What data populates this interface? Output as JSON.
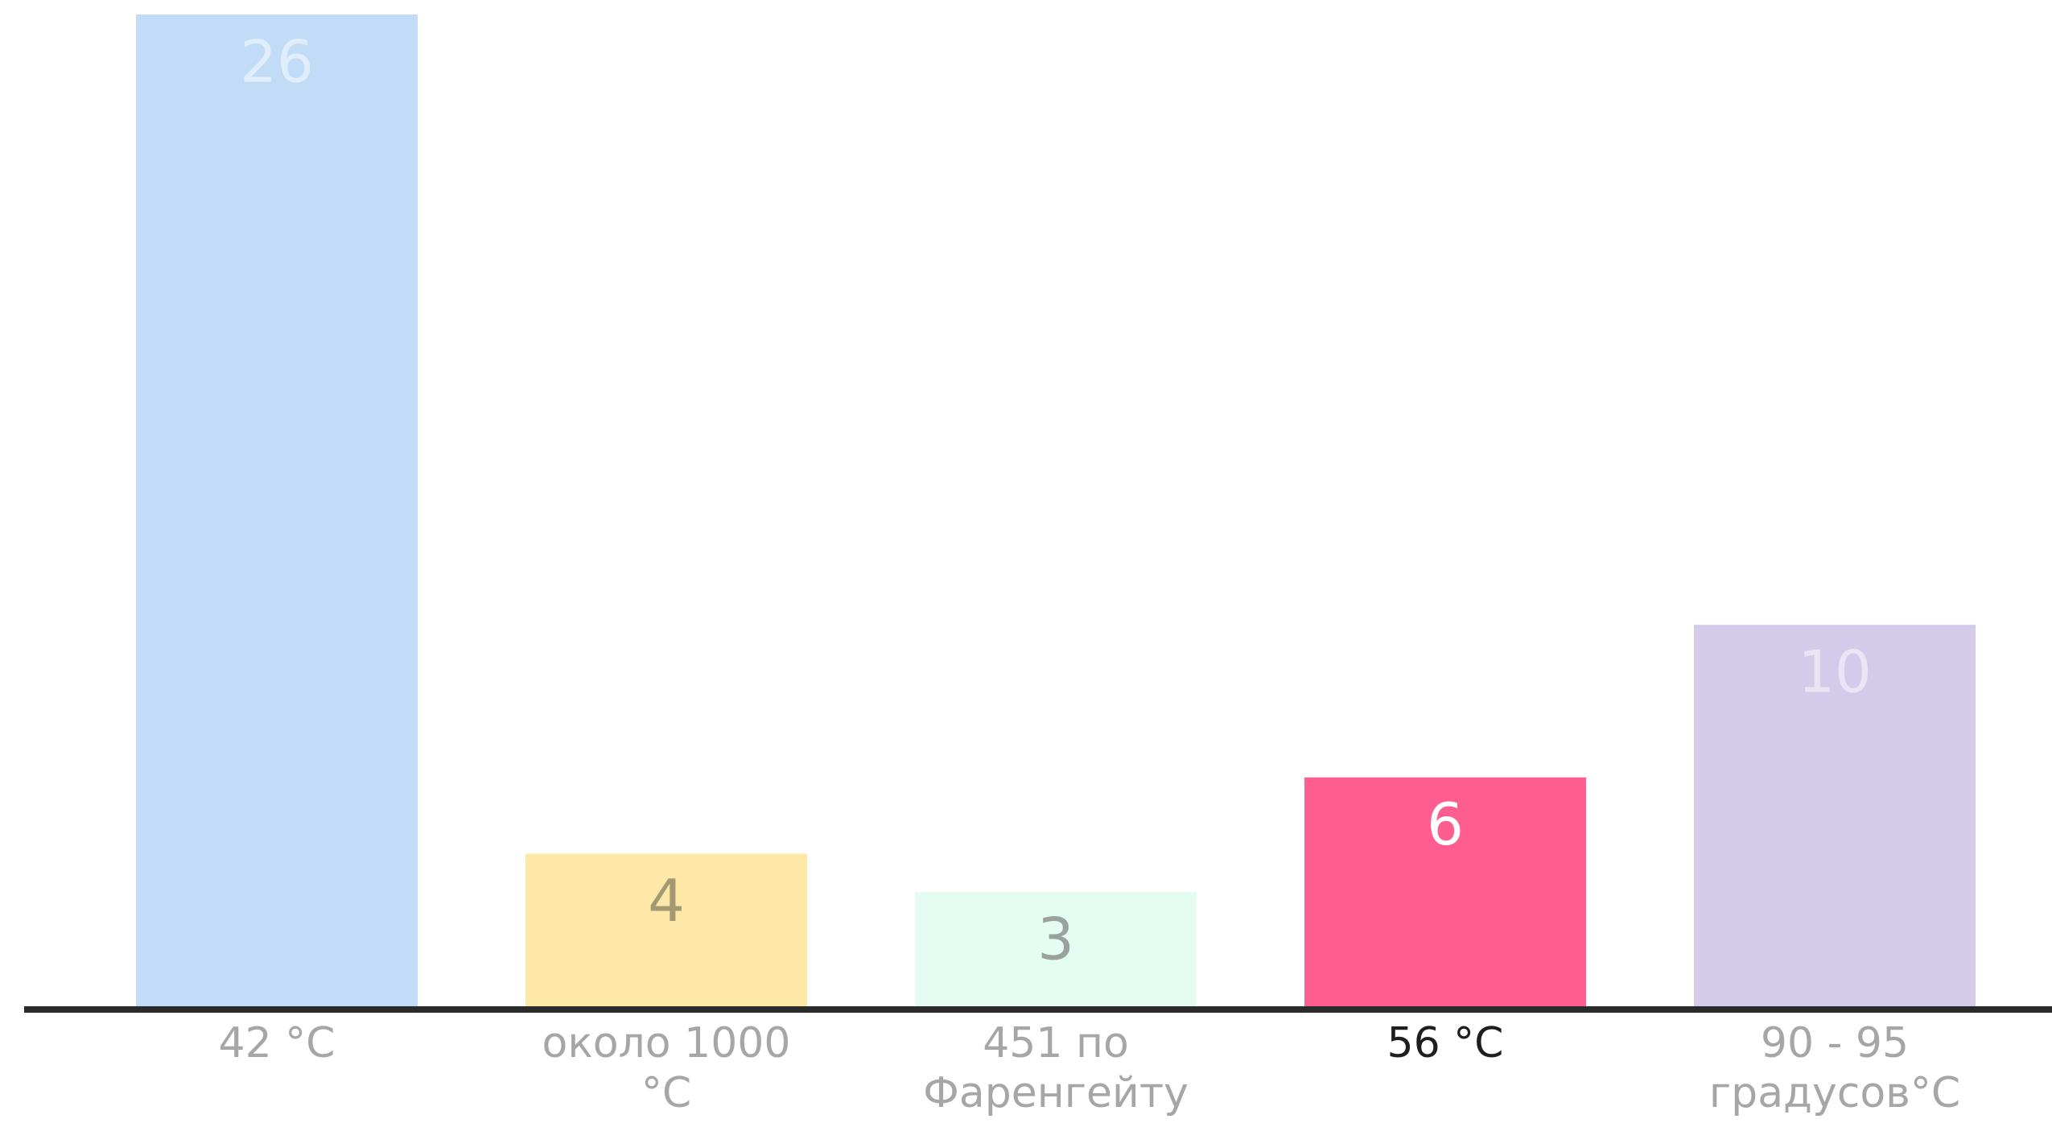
{
  "chart_data": {
    "type": "bar",
    "categories": [
      [
        "42 °C"
      ],
      [
        "около 1000",
        "°C"
      ],
      [
        "451 по",
        "Фаренгейту"
      ],
      [
        "56 °C"
      ],
      [
        "90 - 95",
        "градусов°C"
      ]
    ],
    "values": [
      26,
      4,
      3,
      6,
      10
    ],
    "ylim": [
      0,
      26
    ],
    "grid": false,
    "legend": "none",
    "highlight_index": 3,
    "colors": {
      "bars": [
        "#c2dcf7",
        "#fde8a8",
        "#e5fcf3",
        "#fe5d8f",
        "#d3cbe9"
      ],
      "value_labels": [
        "#e0edfb",
        "#a49a71",
        "#9aa29f",
        "#ffffff",
        "#e9e5f4"
      ],
      "category_label": "#a6a6a6",
      "category_label_highlight": "#1e1e1e",
      "baseline": "#2a2a2a"
    }
  }
}
